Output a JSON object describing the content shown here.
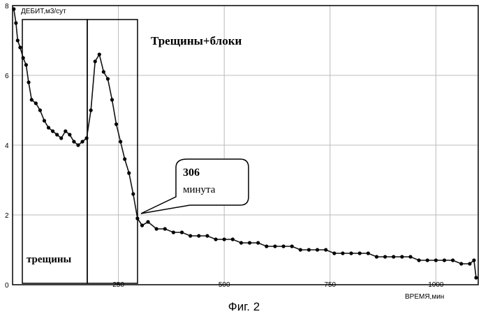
{
  "figure_caption": "Фиг. 2",
  "chart_data": {
    "type": "line",
    "ylabel": "ДЕБИТ,м3/сут",
    "xlabel": "ВРЕМЯ,мин",
    "xlim": [
      0,
      1100
    ],
    "ylim": [
      0,
      8
    ],
    "x_ticks": [
      0,
      250,
      500,
      750,
      1000
    ],
    "x_tick_labels": [
      "0",
      "250",
      "500",
      "750",
      "1000"
    ],
    "y_ticks": [
      0,
      2,
      4,
      6,
      8
    ],
    "y_tick_labels": [
      "0",
      "2",
      "4",
      "6",
      "8"
    ],
    "grid": true,
    "series": [
      {
        "x": [
          3,
          8,
          12,
          18,
          25,
          32,
          38,
          45,
          55,
          65,
          75,
          85,
          95,
          105,
          115,
          125,
          135,
          145,
          155,
          165,
          175,
          185,
          195,
          205,
          215,
          225,
          235,
          245,
          255,
          265,
          275,
          285,
          295,
          306,
          320,
          340,
          360,
          380,
          400,
          420,
          440,
          460,
          480,
          500,
          520,
          540,
          560,
          580,
          600,
          620,
          640,
          660,
          680,
          700,
          720,
          740,
          760,
          780,
          800,
          820,
          840,
          860,
          880,
          900,
          920,
          940,
          960,
          980,
          1000,
          1020,
          1040,
          1060,
          1080,
          1090,
          1095
        ],
        "y": [
          7.9,
          7.5,
          7.0,
          6.8,
          6.5,
          6.3,
          5.8,
          5.3,
          5.2,
          5.0,
          4.7,
          4.5,
          4.4,
          4.3,
          4.2,
          4.4,
          4.3,
          4.1,
          4.0,
          4.1,
          4.2,
          5.0,
          6.4,
          6.6,
          6.1,
          5.9,
          5.3,
          4.6,
          4.1,
          3.6,
          3.2,
          2.6,
          1.9,
          1.7,
          1.8,
          1.6,
          1.6,
          1.5,
          1.5,
          1.4,
          1.4,
          1.4,
          1.3,
          1.3,
          1.3,
          1.2,
          1.2,
          1.2,
          1.1,
          1.1,
          1.1,
          1.1,
          1.0,
          1.0,
          1.0,
          1.0,
          0.9,
          0.9,
          0.9,
          0.9,
          0.9,
          0.8,
          0.8,
          0.8,
          0.8,
          0.8,
          0.7,
          0.7,
          0.7,
          0.7,
          0.7,
          0.6,
          0.6,
          0.7,
          0.2
        ]
      }
    ],
    "annotations": [
      {
        "text": "Трещины+блоки"
      },
      {
        "text": "трещины"
      },
      {
        "text": "306",
        "subtext": "минута"
      }
    ]
  }
}
